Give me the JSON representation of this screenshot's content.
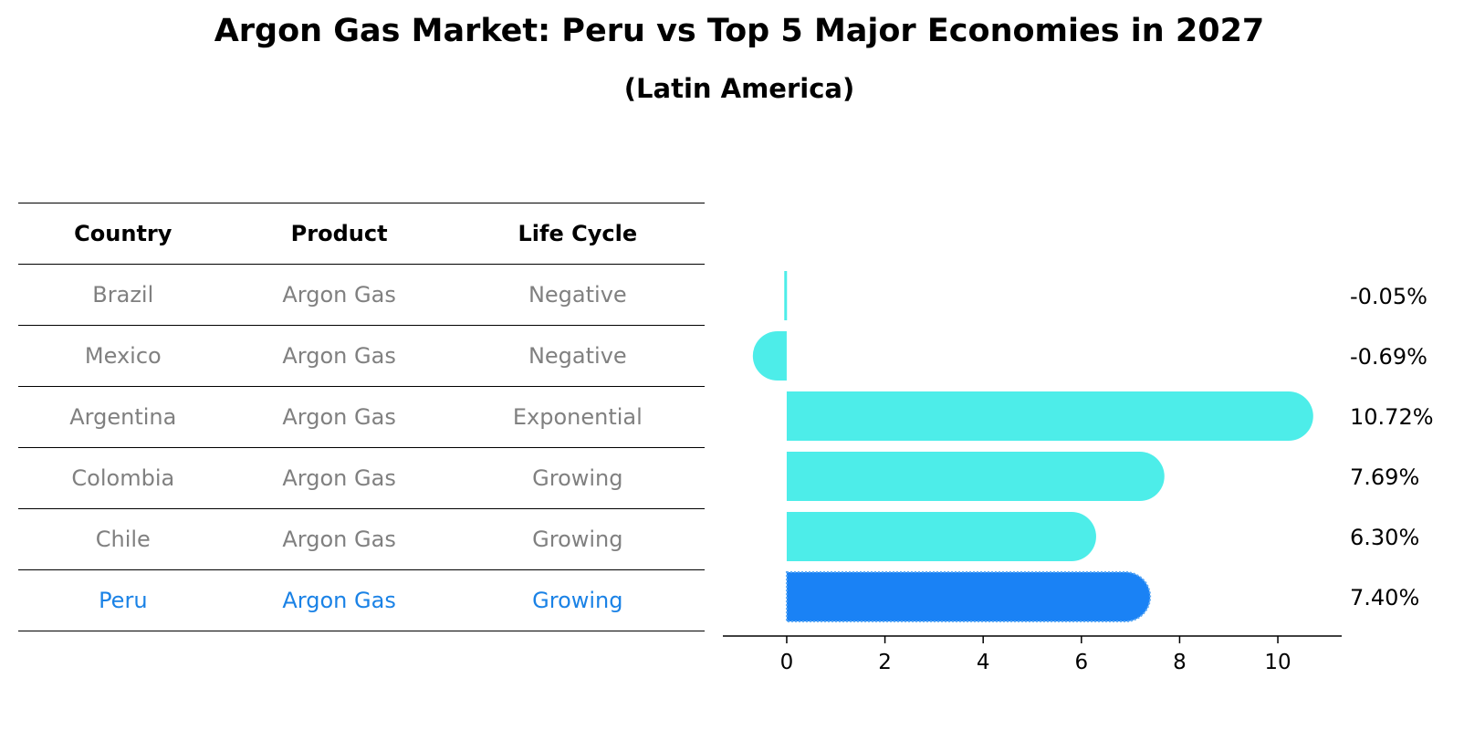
{
  "title": "Argon Gas Market: Peru vs Top 5 Major Economies in 2027",
  "subtitle": "(Latin America)",
  "table": {
    "headers": [
      "Country",
      "Product",
      "Life Cycle"
    ],
    "rows": [
      {
        "country": "Brazil",
        "product": "Argon Gas",
        "life_cycle": "Negative"
      },
      {
        "country": "Mexico",
        "product": "Argon Gas",
        "life_cycle": "Negative"
      },
      {
        "country": "Argentina",
        "product": "Argon Gas",
        "life_cycle": "Exponential"
      },
      {
        "country": "Colombia",
        "product": "Argon Gas",
        "life_cycle": "Growing"
      },
      {
        "country": "Chile",
        "product": "Argon Gas",
        "life_cycle": "Growing"
      },
      {
        "country": "Peru",
        "product": "Argon Gas",
        "life_cycle": "Growing"
      }
    ]
  },
  "chart_data": {
    "type": "bar",
    "orientation": "horizontal",
    "categories": [
      "Brazil",
      "Mexico",
      "Argentina",
      "Colombia",
      "Chile",
      "Peru"
    ],
    "values": [
      -0.05,
      -0.69,
      10.72,
      7.69,
      6.3,
      7.4
    ],
    "data_labels": [
      "-0.05%",
      "-0.69%",
      "10.72%",
      "7.69%",
      "6.30%",
      "7.40%"
    ],
    "highlight": "Peru",
    "xlim": [
      -1.3,
      11.3
    ],
    "xticks": [
      0,
      2,
      4,
      6,
      8,
      10
    ],
    "colors": {
      "default": "#4dede9",
      "highlight": "#1a82f5"
    }
  }
}
